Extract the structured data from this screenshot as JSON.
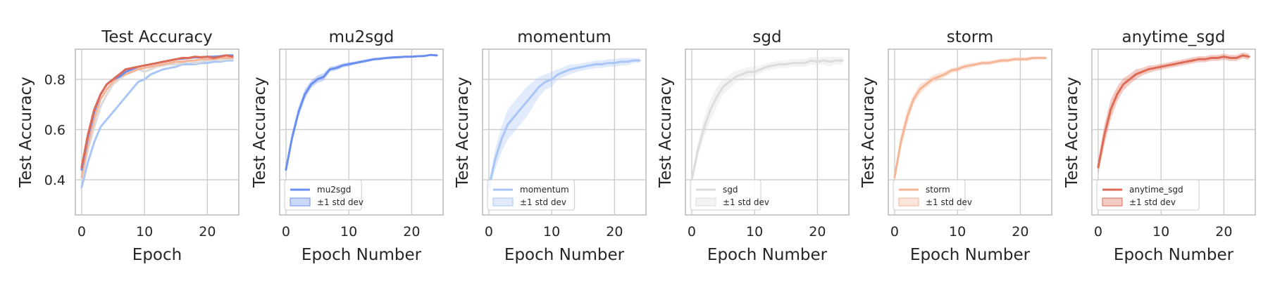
{
  "colors": {
    "mu2sgd": "#6a8ff0",
    "momentum": "#a9c6f7",
    "sgd": "#dcdcdc",
    "storm": "#f5b597",
    "anytime_sgd": "#dd6b55"
  },
  "chart_data": [
    {
      "type": "line",
      "title": "Test Accuracy",
      "xlabel": "Epoch",
      "ylabel": "Test Accuracy",
      "xlim": [
        -1,
        25
      ],
      "ylim": [
        0.26,
        0.92
      ],
      "xticks": [
        0,
        10,
        20
      ],
      "yticks": [
        0.4,
        0.6,
        0.8
      ],
      "grid": true,
      "legend": null,
      "x": [
        0,
        1,
        2,
        3,
        4,
        5,
        6,
        7,
        8,
        9,
        10,
        11,
        12,
        13,
        14,
        15,
        16,
        17,
        18,
        19,
        20,
        21,
        22,
        23,
        24
      ],
      "series": [
        {
          "key": "momentum",
          "values": [
            0.37,
            0.47,
            0.55,
            0.61,
            0.64,
            0.67,
            0.7,
            0.73,
            0.76,
            0.79,
            0.8,
            0.82,
            0.83,
            0.84,
            0.845,
            0.85,
            0.86,
            0.86,
            0.86,
            0.865,
            0.865,
            0.87,
            0.87,
            0.875,
            0.875
          ]
        },
        {
          "key": "sgd",
          "values": [
            0.4,
            0.52,
            0.61,
            0.69,
            0.74,
            0.78,
            0.8,
            0.82,
            0.83,
            0.84,
            0.83,
            0.84,
            0.85,
            0.855,
            0.86,
            0.86,
            0.865,
            0.87,
            0.865,
            0.87,
            0.875,
            0.88,
            0.875,
            0.88,
            0.88
          ]
        },
        {
          "key": "storm",
          "values": [
            0.41,
            0.54,
            0.64,
            0.72,
            0.76,
            0.79,
            0.81,
            0.82,
            0.83,
            0.84,
            0.845,
            0.85,
            0.855,
            0.86,
            0.865,
            0.87,
            0.87,
            0.875,
            0.875,
            0.88,
            0.88,
            0.88,
            0.885,
            0.885,
            0.885
          ]
        },
        {
          "key": "mu2sgd",
          "values": [
            0.44,
            0.57,
            0.67,
            0.74,
            0.78,
            0.8,
            0.81,
            0.83,
            0.84,
            0.85,
            0.855,
            0.86,
            0.865,
            0.87,
            0.875,
            0.88,
            0.882,
            0.885,
            0.887,
            0.888,
            0.89,
            0.89,
            0.892,
            0.895,
            0.895
          ]
        },
        {
          "key": "anytime_sgd",
          "values": [
            0.45,
            0.58,
            0.68,
            0.74,
            0.78,
            0.8,
            0.82,
            0.84,
            0.845,
            0.85,
            0.855,
            0.86,
            0.865,
            0.87,
            0.875,
            0.88,
            0.885,
            0.885,
            0.89,
            0.888,
            0.89,
            0.885,
            0.89,
            0.895,
            0.89
          ]
        }
      ]
    },
    {
      "type": "line",
      "title": "mu2sgd",
      "xlabel": "Epoch Number",
      "ylabel": "Test Accuracy",
      "xlim": [
        -1,
        25
      ],
      "ylim": [
        0.26,
        0.92
      ],
      "xticks": [
        0,
        10,
        20
      ],
      "yticks": [
        0.4,
        0.6,
        0.8
      ],
      "grid": true,
      "legend": "lower-left",
      "x": [
        0,
        1,
        2,
        3,
        4,
        5,
        6,
        7,
        8,
        9,
        10,
        11,
        12,
        13,
        14,
        15,
        16,
        17,
        18,
        19,
        20,
        21,
        22,
        23,
        24
      ],
      "series": [
        {
          "key": "mu2sgd",
          "name": "mu2sgd",
          "values": [
            0.44,
            0.57,
            0.67,
            0.74,
            0.78,
            0.8,
            0.81,
            0.84,
            0.845,
            0.855,
            0.86,
            0.865,
            0.87,
            0.875,
            0.88,
            0.882,
            0.885,
            0.887,
            0.888,
            0.89,
            0.89,
            0.892,
            0.893,
            0.897,
            0.895
          ],
          "std": [
            0.01,
            0.02,
            0.02,
            0.02,
            0.015,
            0.015,
            0.015,
            0.01,
            0.01,
            0.008,
            0.008,
            0.006,
            0.006,
            0.006,
            0.005,
            0.005,
            0.005,
            0.005,
            0.005,
            0.004,
            0.004,
            0.004,
            0.004,
            0.004,
            0.004
          ]
        }
      ],
      "band_label": "±1 std dev"
    },
    {
      "type": "line",
      "title": "momentum",
      "xlabel": "Epoch Number",
      "ylabel": "Test Accuracy",
      "xlim": [
        -1,
        25
      ],
      "ylim": [
        0.26,
        0.92
      ],
      "xticks": [
        0,
        10,
        20
      ],
      "yticks": [
        0.4,
        0.6,
        0.8
      ],
      "grid": true,
      "legend": "lower-left",
      "x": [
        0,
        1,
        2,
        3,
        4,
        5,
        6,
        7,
        8,
        9,
        10,
        11,
        12,
        13,
        14,
        15,
        16,
        17,
        18,
        19,
        20,
        21,
        22,
        23,
        24
      ],
      "series": [
        {
          "key": "momentum",
          "name": "momentum",
          "values": [
            0.37,
            0.48,
            0.56,
            0.62,
            0.65,
            0.68,
            0.71,
            0.74,
            0.77,
            0.79,
            0.8,
            0.82,
            0.83,
            0.84,
            0.845,
            0.85,
            0.855,
            0.86,
            0.86,
            0.865,
            0.865,
            0.87,
            0.87,
            0.875,
            0.875
          ],
          "std": [
            0.02,
            0.04,
            0.05,
            0.06,
            0.06,
            0.06,
            0.06,
            0.05,
            0.04,
            0.03,
            0.03,
            0.02,
            0.02,
            0.02,
            0.015,
            0.015,
            0.015,
            0.015,
            0.015,
            0.015,
            0.015,
            0.015,
            0.015,
            0.01,
            0.01
          ]
        }
      ],
      "band_label": "±1 std dev"
    },
    {
      "type": "line",
      "title": "sgd",
      "xlabel": "Epoch Number",
      "ylabel": "Test Accuracy",
      "xlim": [
        -1,
        25
      ],
      "ylim": [
        0.26,
        0.92
      ],
      "xticks": [
        0,
        10,
        20
      ],
      "yticks": [
        0.4,
        0.6,
        0.8
      ],
      "grid": true,
      "legend": "lower-left",
      "x": [
        0,
        1,
        2,
        3,
        4,
        5,
        6,
        7,
        8,
        9,
        10,
        11,
        12,
        13,
        14,
        15,
        16,
        17,
        18,
        19,
        20,
        21,
        22,
        23,
        24
      ],
      "series": [
        {
          "key": "sgd",
          "name": "sgd",
          "values": [
            0.4,
            0.52,
            0.61,
            0.68,
            0.73,
            0.77,
            0.79,
            0.81,
            0.82,
            0.83,
            0.83,
            0.84,
            0.85,
            0.855,
            0.86,
            0.86,
            0.865,
            0.865,
            0.865,
            0.875,
            0.87,
            0.875,
            0.87,
            0.875,
            0.875
          ],
          "std": [
            0.02,
            0.03,
            0.04,
            0.04,
            0.04,
            0.03,
            0.03,
            0.025,
            0.02,
            0.02,
            0.02,
            0.015,
            0.015,
            0.015,
            0.015,
            0.015,
            0.015,
            0.015,
            0.015,
            0.015,
            0.015,
            0.015,
            0.02,
            0.015,
            0.015
          ]
        }
      ],
      "band_label": "±1 std dev"
    },
    {
      "type": "line",
      "title": "storm",
      "xlabel": "Epoch Number",
      "ylabel": "Test Accuracy",
      "xlim": [
        -1,
        25
      ],
      "ylim": [
        0.26,
        0.92
      ],
      "xticks": [
        0,
        10,
        20
      ],
      "yticks": [
        0.4,
        0.6,
        0.8
      ],
      "grid": true,
      "legend": "lower-left",
      "x": [
        0,
        1,
        2,
        3,
        4,
        5,
        6,
        7,
        8,
        9,
        10,
        11,
        12,
        13,
        14,
        15,
        16,
        17,
        18,
        19,
        20,
        21,
        22,
        23,
        24
      ],
      "series": [
        {
          "key": "storm",
          "name": "storm",
          "values": [
            0.41,
            0.55,
            0.65,
            0.72,
            0.76,
            0.78,
            0.8,
            0.81,
            0.82,
            0.835,
            0.84,
            0.85,
            0.855,
            0.86,
            0.865,
            0.865,
            0.87,
            0.875,
            0.875,
            0.88,
            0.88,
            0.88,
            0.885,
            0.885,
            0.885
          ],
          "std": [
            0.02,
            0.03,
            0.03,
            0.02,
            0.02,
            0.015,
            0.015,
            0.015,
            0.012,
            0.01,
            0.01,
            0.01,
            0.01,
            0.008,
            0.008,
            0.008,
            0.008,
            0.008,
            0.008,
            0.008,
            0.008,
            0.008,
            0.006,
            0.006,
            0.006
          ]
        }
      ],
      "band_label": "±1 std dev"
    },
    {
      "type": "line",
      "title": "anytime_sgd",
      "xlabel": "Epoch Number",
      "ylabel": "Test Accuracy",
      "xlim": [
        -1,
        25
      ],
      "ylim": [
        0.26,
        0.92
      ],
      "xticks": [
        0,
        10,
        20
      ],
      "yticks": [
        0.4,
        0.6,
        0.8
      ],
      "grid": true,
      "legend": "lower-left",
      "x": [
        0,
        1,
        2,
        3,
        4,
        5,
        6,
        7,
        8,
        9,
        10,
        11,
        12,
        13,
        14,
        15,
        16,
        17,
        18,
        19,
        20,
        21,
        22,
        23,
        24
      ],
      "series": [
        {
          "key": "anytime_sgd",
          "name": "anytime_sgd",
          "values": [
            0.45,
            0.58,
            0.68,
            0.74,
            0.78,
            0.8,
            0.82,
            0.83,
            0.84,
            0.845,
            0.85,
            0.855,
            0.86,
            0.865,
            0.87,
            0.875,
            0.88,
            0.88,
            0.885,
            0.885,
            0.89,
            0.885,
            0.885,
            0.895,
            0.89
          ],
          "std": [
            0.03,
            0.04,
            0.04,
            0.03,
            0.025,
            0.02,
            0.02,
            0.015,
            0.015,
            0.012,
            0.012,
            0.012,
            0.012,
            0.012,
            0.012,
            0.012,
            0.012,
            0.012,
            0.012,
            0.012,
            0.012,
            0.012,
            0.012,
            0.012,
            0.012
          ]
        }
      ],
      "band_label": "±1 std dev"
    }
  ]
}
